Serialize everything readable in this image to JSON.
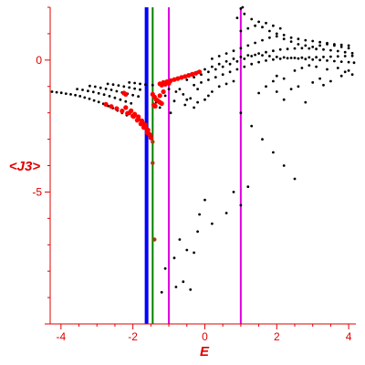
{
  "chart_data": {
    "type": "scatter",
    "xlabel": "E",
    "ylabel": "<J3>",
    "xlim": [
      -4.3,
      4.2
    ],
    "ylim": [
      -10,
      2.0
    ],
    "x_ticks": [
      {
        "value": -4,
        "label": "-4"
      },
      {
        "value": -2,
        "label": "-2"
      },
      {
        "value": 0,
        "label": "0"
      },
      {
        "value": 2,
        "label": "2"
      },
      {
        "value": 4,
        "label": "4"
      }
    ],
    "y_ticks": [
      {
        "value": 0,
        "label": "0"
      },
      {
        "value": -5,
        "label": "-5"
      }
    ],
    "grid": false,
    "colors": {
      "axis": "#e00000",
      "black_points": "#000000",
      "red_points": "#ff0000",
      "brown_points": "#a04000",
      "blue_line": "#0000ff",
      "green_line": "#008000",
      "magenta_line": "#e000e0"
    },
    "vertical_lines": [
      {
        "x": -1.62,
        "color": "#0000ff",
        "width": 4
      },
      {
        "x": -1.45,
        "color": "#008000",
        "width": 2
      },
      {
        "x": -1.0,
        "color": "#e000e0",
        "width": 2
      },
      {
        "x": 1.0,
        "color": "#e000e0",
        "width": 2
      }
    ],
    "series": [
      {
        "color": "#000000",
        "size": 1.4,
        "points": [
          [
            -4.25,
            -1.2
          ],
          [
            -4.12,
            -1.22
          ],
          [
            -3.99,
            -1.24
          ],
          [
            -3.86,
            -1.27
          ],
          [
            -3.73,
            -1.3
          ],
          [
            -3.6,
            -1.33
          ],
          [
            -3.47,
            -1.37
          ],
          [
            -3.34,
            -1.42
          ],
          [
            -3.21,
            -1.47
          ],
          [
            -3.08,
            -1.53
          ],
          [
            -2.95,
            -1.59
          ],
          [
            -2.82,
            -1.66
          ],
          [
            -2.69,
            -1.74
          ],
          [
            -2.56,
            -1.82
          ],
          [
            -2.43,
            -1.91
          ],
          [
            -2.3,
            -2.0
          ],
          [
            -2.17,
            -2.09
          ],
          [
            -3.55,
            -1.1
          ],
          [
            -3.4,
            -1.13
          ],
          [
            -3.25,
            -1.17
          ],
          [
            -3.1,
            -1.21
          ],
          [
            -2.95,
            -1.26
          ],
          [
            -2.8,
            -1.31
          ],
          [
            -2.65,
            -1.37
          ],
          [
            -2.5,
            -1.43
          ],
          [
            -2.35,
            -1.5
          ],
          [
            -2.2,
            -1.57
          ],
          [
            -2.05,
            -1.64
          ],
          [
            -3.2,
            -0.98
          ],
          [
            -3.05,
            -1.01
          ],
          [
            -2.9,
            -1.05
          ],
          [
            -2.75,
            -1.09
          ],
          [
            -2.6,
            -1.13
          ],
          [
            -2.45,
            -1.18
          ],
          [
            -2.3,
            -1.23
          ],
          [
            -2.15,
            -1.28
          ],
          [
            -2.0,
            -1.33
          ],
          [
            -1.85,
            -1.38
          ],
          [
            -2.7,
            -0.9
          ],
          [
            -2.55,
            -0.93
          ],
          [
            -2.4,
            -0.96
          ],
          [
            -2.25,
            -1.0
          ],
          [
            -2.1,
            -1.04
          ],
          [
            -1.95,
            -1.08
          ],
          [
            -1.8,
            -1.12
          ],
          [
            -2.1,
            -0.85
          ],
          [
            -1.95,
            -0.87
          ],
          [
            -1.8,
            -0.9
          ],
          [
            -1.65,
            -0.93
          ],
          [
            -1.45,
            -0.95
          ],
          [
            -1.2,
            -0.98
          ],
          [
            -1.0,
            -1.1
          ],
          [
            -0.8,
            -1.2
          ],
          [
            -0.6,
            -1.3
          ],
          [
            -0.4,
            -1.45
          ],
          [
            -0.2,
            -1.6
          ],
          [
            -1.1,
            -1.35
          ],
          [
            -0.85,
            -1.55
          ],
          [
            -0.55,
            -1.7
          ],
          [
            -0.3,
            -1.8
          ],
          [
            -1.35,
            -1.6
          ],
          [
            -1.25,
            -1.8
          ],
          [
            -0.95,
            -2.0
          ],
          [
            -0.5,
            -0.75
          ],
          [
            -0.3,
            -0.65
          ],
          [
            -0.1,
            -0.55
          ],
          [
            0.1,
            -0.45
          ],
          [
            0.3,
            -0.35
          ],
          [
            0.5,
            -0.25
          ],
          [
            0.7,
            -0.15
          ],
          [
            0.9,
            -0.05
          ],
          [
            1.1,
            0.05
          ],
          [
            1.3,
            0.15
          ],
          [
            1.5,
            0.25
          ],
          [
            1.7,
            0.3
          ],
          [
            1.9,
            0.35
          ],
          [
            2.1,
            0.4
          ],
          [
            2.3,
            0.42
          ],
          [
            2.5,
            0.44
          ],
          [
            2.7,
            0.45
          ],
          [
            2.9,
            0.44
          ],
          [
            3.1,
            0.42
          ],
          [
            3.3,
            0.4
          ],
          [
            3.5,
            0.37
          ],
          [
            3.7,
            0.34
          ],
          [
            3.9,
            0.3
          ],
          [
            4.1,
            0.26
          ],
          [
            -0.4,
            -0.55
          ],
          [
            -0.2,
            -0.45
          ],
          [
            0.0,
            -0.35
          ],
          [
            0.2,
            -0.25
          ],
          [
            0.4,
            -0.15
          ],
          [
            0.6,
            -0.05
          ],
          [
            0.8,
            0.05
          ],
          [
            1.0,
            0.12
          ],
          [
            1.2,
            0.18
          ],
          [
            1.4,
            0.2
          ],
          [
            1.6,
            0.18
          ],
          [
            1.8,
            0.15
          ],
          [
            2.0,
            0.12
          ],
          [
            2.2,
            0.1
          ],
          [
            2.4,
            0.08
          ],
          [
            2.6,
            0.06
          ],
          [
            2.8,
            0.04
          ],
          [
            3.0,
            0.02
          ],
          [
            3.2,
            0.0
          ],
          [
            3.4,
            -0.02
          ],
          [
            3.6,
            -0.04
          ],
          [
            3.8,
            -0.06
          ],
          [
            4.0,
            -0.08
          ],
          [
            4.15,
            -0.1
          ],
          [
            -0.3,
            -0.95
          ],
          [
            -0.1,
            -0.85
          ],
          [
            0.1,
            -0.75
          ],
          [
            0.3,
            -0.65
          ],
          [
            0.5,
            -0.55
          ],
          [
            0.7,
            -0.45
          ],
          [
            0.9,
            -0.35
          ],
          [
            1.1,
            -0.25
          ],
          [
            1.3,
            -0.15
          ],
          [
            1.5,
            -0.08
          ],
          [
            1.7,
            -0.02
          ],
          [
            1.9,
            0.02
          ],
          [
            2.1,
            0.05
          ],
          [
            2.3,
            0.07
          ],
          [
            2.5,
            0.08
          ],
          [
            2.7,
            0.09
          ],
          [
            2.9,
            0.1
          ],
          [
            3.1,
            0.11
          ],
          [
            3.3,
            0.12
          ],
          [
            3.5,
            0.13
          ],
          [
            3.7,
            0.14
          ],
          [
            3.9,
            0.15
          ],
          [
            4.1,
            0.16
          ],
          [
            0.2,
            0.05
          ],
          [
            0.4,
            0.15
          ],
          [
            0.6,
            0.25
          ],
          [
            0.8,
            0.35
          ],
          [
            1.0,
            0.45
          ],
          [
            1.2,
            0.55
          ],
          [
            1.4,
            0.65
          ],
          [
            1.6,
            0.75
          ],
          [
            1.8,
            0.85
          ],
          [
            2.0,
            0.9
          ],
          [
            2.2,
            0.8
          ],
          [
            2.4,
            0.7
          ],
          [
            2.6,
            0.6
          ],
          [
            2.8,
            0.55
          ],
          [
            3.0,
            0.5
          ],
          [
            3.2,
            0.55
          ],
          [
            3.4,
            0.6
          ],
          [
            3.6,
            0.55
          ],
          [
            3.8,
            0.5
          ],
          [
            4.0,
            0.45
          ],
          [
            1.0,
            1.1
          ],
          [
            1.2,
            1.2
          ],
          [
            1.4,
            1.3
          ],
          [
            1.6,
            1.25
          ],
          [
            1.8,
            1.1
          ],
          [
            2.0,
            1.0
          ],
          [
            2.2,
            0.95
          ],
          [
            2.4,
            0.85
          ],
          [
            2.6,
            0.8
          ],
          [
            2.8,
            0.75
          ],
          [
            3.0,
            0.72
          ],
          [
            3.2,
            0.68
          ],
          [
            3.4,
            0.64
          ],
          [
            3.6,
            0.6
          ],
          [
            3.8,
            0.58
          ],
          [
            4.0,
            0.55
          ],
          [
            0.9,
            1.6
          ],
          [
            1.0,
            1.95
          ],
          [
            1.05,
            2.0
          ],
          [
            1.1,
            1.75
          ],
          [
            1.3,
            1.55
          ],
          [
            1.5,
            1.45
          ],
          [
            1.7,
            1.4
          ],
          [
            1.9,
            1.3
          ],
          [
            2.1,
            1.2
          ],
          [
            0.0,
            -1.5
          ],
          [
            0.2,
            -1.2
          ],
          [
            0.4,
            -1.0
          ],
          [
            0.6,
            -0.9
          ],
          [
            0.8,
            -0.8
          ],
          [
            -0.7,
            -1.1
          ],
          [
            -0.5,
            -1.5
          ],
          [
            -0.2,
            -1.1
          ],
          [
            0.1,
            -1.35
          ],
          [
            2.4,
            -1.1
          ],
          [
            2.6,
            -1.0
          ],
          [
            3.0,
            -0.85
          ],
          [
            3.2,
            -0.7
          ],
          [
            3.5,
            -0.8
          ],
          [
            3.8,
            -0.6
          ],
          [
            4.0,
            -0.4
          ],
          [
            2.2,
            -1.5
          ],
          [
            2.0,
            -1.2
          ],
          [
            2.8,
            -1.6
          ],
          [
            3.3,
            -0.95
          ],
          [
            1.5,
            -1.25
          ],
          [
            1.7,
            -1.0
          ],
          [
            1.9,
            -0.8
          ],
          [
            2.5,
            -0.4
          ],
          [
            2.7,
            -0.3
          ],
          [
            2.9,
            -0.2
          ],
          [
            3.1,
            -0.25
          ],
          [
            3.4,
            -0.35
          ],
          [
            3.7,
            -0.3
          ],
          [
            3.9,
            -0.45
          ],
          [
            4.1,
            -0.55
          ],
          [
            2.0,
            -0.6
          ],
          [
            2.2,
            -0.7
          ],
          [
            1.0,
            -2.0
          ],
          [
            1.3,
            -2.5
          ],
          [
            1.6,
            -3.0
          ],
          [
            1.9,
            -3.5
          ],
          [
            2.2,
            -4.0
          ],
          [
            2.5,
            -4.5
          ],
          [
            1.2,
            -4.8
          ],
          [
            0.8,
            -5.0
          ],
          [
            1.0,
            -5.5
          ],
          [
            0.6,
            -5.8
          ],
          [
            0.2,
            -6.2
          ],
          [
            -0.2,
            -6.5
          ],
          [
            -0.7,
            -6.8
          ],
          [
            -0.5,
            -7.2
          ],
          [
            -0.85,
            -7.5
          ],
          [
            -1.1,
            -7.9
          ],
          [
            -0.6,
            -8.4
          ],
          [
            -0.8,
            -8.6
          ],
          [
            -1.2,
            -8.8
          ],
          [
            -0.4,
            -8.7
          ],
          [
            -0.3,
            -7.3
          ],
          [
            0.0,
            -5.3
          ],
          [
            -0.15,
            -5.85
          ]
        ]
      },
      {
        "color": "#ff0000",
        "size": 2.6,
        "points": [
          [
            -2.75,
            -1.68
          ],
          [
            -2.6,
            -1.76
          ],
          [
            -2.45,
            -1.84
          ],
          [
            -2.3,
            -1.93
          ],
          [
            -2.15,
            -2.02
          ],
          [
            -2.0,
            -2.12
          ],
          [
            -1.85,
            -2.24
          ],
          [
            -1.72,
            -2.4
          ],
          [
            -1.62,
            -2.6
          ],
          [
            -1.55,
            -2.8
          ],
          [
            -1.5,
            -2.95
          ],
          [
            -2.2,
            -1.8
          ],
          [
            -2.05,
            -1.92
          ],
          [
            -1.95,
            -2.05
          ],
          [
            -1.85,
            -2.15
          ],
          [
            -1.75,
            -2.3
          ],
          [
            -1.65,
            -2.45
          ],
          [
            -1.58,
            -2.65
          ],
          [
            -1.52,
            -2.85
          ],
          [
            -2.1,
            -2.0
          ],
          [
            -1.98,
            -2.14
          ],
          [
            -1.88,
            -2.28
          ],
          [
            -1.78,
            -2.42
          ],
          [
            -1.7,
            -2.55
          ],
          [
            -1.6,
            -2.75
          ],
          [
            -1.4,
            -1.4
          ],
          [
            -1.35,
            -1.5
          ],
          [
            -1.3,
            -1.55
          ],
          [
            -1.25,
            -1.6
          ],
          [
            -1.2,
            -1.65
          ],
          [
            -1.42,
            -1.7
          ],
          [
            -1.38,
            -1.75
          ],
          [
            -1.25,
            -0.9
          ],
          [
            -1.15,
            -0.85
          ],
          [
            -1.05,
            -0.82
          ],
          [
            -0.95,
            -0.78
          ],
          [
            -0.85,
            -0.74
          ],
          [
            -0.75,
            -0.7
          ],
          [
            -0.65,
            -0.66
          ],
          [
            -0.55,
            -0.62
          ],
          [
            -0.45,
            -0.58
          ],
          [
            -0.35,
            -0.54
          ],
          [
            -0.25,
            -0.5
          ],
          [
            -0.15,
            -0.45
          ],
          [
            -1.2,
            -0.95
          ],
          [
            -1.1,
            -0.92
          ],
          [
            -1.0,
            -0.88
          ],
          [
            -2.25,
            -1.25
          ],
          [
            -2.2,
            -1.3
          ],
          [
            -1.45,
            -1.3
          ],
          [
            -1.25,
            -1.35
          ],
          [
            -1.15,
            -1.2
          ]
        ]
      },
      {
        "color": "#a04000",
        "size": 2.2,
        "points": [
          [
            -1.45,
            -3.1
          ],
          [
            -1.45,
            -3.9
          ],
          [
            -1.4,
            -6.8
          ]
        ]
      }
    ]
  }
}
